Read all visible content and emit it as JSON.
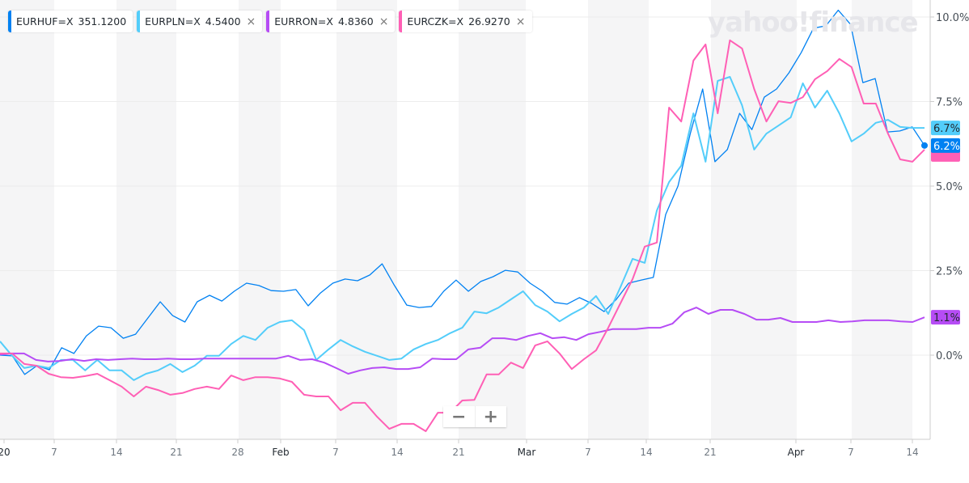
{
  "chart_data": {
    "type": "line",
    "title": "",
    "ylabel": "",
    "xlabel": "",
    "ylim": [
      -2.5,
      10.5
    ],
    "yticks": [
      "10.0%",
      "7.5%",
      "5.0%",
      "2.5%",
      "0.0%"
    ],
    "ytick_values": [
      10,
      7.5,
      5,
      2.5,
      0
    ],
    "xticks": [
      "20",
      "7",
      "14",
      "21",
      "28",
      "Feb",
      "7",
      "14",
      "21",
      "Mar",
      "7",
      "14",
      "21",
      "Apr",
      "7",
      "14"
    ],
    "legend_position": "top-left",
    "series": [
      {
        "name": "EURHUF=X",
        "price": "351.1200",
        "color": "#0081f2",
        "removable": false,
        "last_label": "6.2%",
        "values": [
          0.0,
          -0.02,
          -0.57,
          -0.31,
          -0.43,
          0.22,
          0.05,
          0.57,
          0.86,
          0.81,
          0.5,
          0.62,
          1.1,
          1.58,
          1.17,
          0.98,
          1.58,
          1.77,
          1.6,
          1.89,
          2.13,
          2.06,
          1.91,
          1.89,
          1.94,
          1.46,
          1.84,
          2.13,
          2.25,
          2.2,
          2.37,
          2.7,
          2.06,
          1.48,
          1.41,
          1.44,
          1.89,
          2.22,
          1.89,
          2.18,
          2.32,
          2.51,
          2.46,
          2.13,
          1.89,
          1.56,
          1.51,
          1.7,
          1.53,
          1.29,
          1.65,
          2.13,
          2.22,
          2.3,
          4.16,
          5.0,
          6.55,
          7.87,
          5.72,
          6.08,
          7.15,
          6.67,
          7.63,
          7.87,
          8.35,
          8.95,
          9.67,
          9.74,
          10.2,
          9.78,
          8.06,
          8.18,
          6.6,
          6.63,
          6.75,
          6.2
        ]
      },
      {
        "name": "EURPLN=X",
        "price": "4.5400",
        "color": "#53cdfa",
        "removable": true,
        "last_label": "6.7%",
        "values": [
          0.41,
          -0.02,
          -0.38,
          -0.31,
          -0.38,
          -0.14,
          -0.14,
          -0.45,
          -0.14,
          -0.45,
          -0.45,
          -0.74,
          -0.55,
          -0.45,
          -0.26,
          -0.5,
          -0.31,
          -0.02,
          -0.02,
          0.33,
          0.57,
          0.45,
          0.81,
          0.98,
          1.03,
          0.74,
          -0.14,
          0.17,
          0.45,
          0.26,
          0.1,
          -0.02,
          -0.14,
          -0.1,
          0.17,
          0.33,
          0.45,
          0.65,
          0.81,
          1.29,
          1.24,
          1.41,
          1.65,
          1.89,
          1.48,
          1.29,
          1.0,
          1.22,
          1.41,
          1.75,
          1.22,
          2.01,
          2.85,
          2.73,
          4.28,
          5.12,
          5.6,
          7.15,
          5.72,
          8.11,
          8.23,
          7.39,
          6.08,
          6.55,
          6.79,
          7.03,
          8.04,
          7.32,
          7.82,
          7.15,
          6.32,
          6.55,
          6.87,
          6.96,
          6.75,
          6.72,
          6.72
        ]
      },
      {
        "name": "EURRON=X",
        "price": "4.8360",
        "color": "#b64cf5",
        "removable": true,
        "last_label": "1.1%",
        "values": [
          0.02,
          0.05,
          0.05,
          -0.14,
          -0.19,
          -0.17,
          -0.12,
          -0.17,
          -0.12,
          -0.14,
          -0.12,
          -0.1,
          -0.12,
          -0.12,
          -0.1,
          -0.12,
          -0.12,
          -0.1,
          -0.1,
          -0.1,
          -0.1,
          -0.1,
          -0.1,
          -0.1,
          -0.02,
          -0.14,
          -0.12,
          -0.22,
          -0.38,
          -0.55,
          -0.45,
          -0.38,
          -0.36,
          -0.41,
          -0.41,
          -0.36,
          -0.1,
          -0.12,
          -0.12,
          0.17,
          0.22,
          0.5,
          0.5,
          0.45,
          0.57,
          0.65,
          0.5,
          0.53,
          0.45,
          0.62,
          0.69,
          0.77,
          0.77,
          0.77,
          0.81,
          0.81,
          0.93,
          1.27,
          1.41,
          1.22,
          1.34,
          1.34,
          1.22,
          1.05,
          1.05,
          1.1,
          0.98,
          0.98,
          0.98,
          1.03,
          0.98,
          1.0,
          1.03,
          1.03,
          1.03,
          1.0,
          0.98,
          1.12
        ]
      },
      {
        "name": "EURCZK=X",
        "price": "26.9270",
        "color": "#ff5fb5",
        "removable": true,
        "last_label": "",
        "values": [
          0.05,
          0.05,
          -0.26,
          -0.31,
          -0.55,
          -0.65,
          -0.67,
          -0.62,
          -0.55,
          -0.74,
          -0.93,
          -1.22,
          -0.93,
          -1.03,
          -1.17,
          -1.12,
          -1.0,
          -0.93,
          -1.0,
          -0.6,
          -0.74,
          -0.65,
          -0.65,
          -0.69,
          -0.79,
          -1.17,
          -1.22,
          -1.22,
          -1.63,
          -1.41,
          -1.41,
          -1.82,
          -2.18,
          -2.03,
          -2.03,
          -2.25,
          -1.7,
          -1.7,
          -1.34,
          -1.32,
          -0.57,
          -0.57,
          -0.22,
          -0.38,
          0.29,
          0.41,
          0.05,
          -0.41,
          -0.12,
          0.14,
          0.81,
          1.53,
          2.25,
          3.21,
          3.33,
          7.32,
          6.91,
          8.71,
          9.19,
          7.15,
          9.31,
          9.07,
          7.87,
          6.91,
          7.51,
          7.46,
          7.63,
          8.16,
          8.4,
          8.76,
          8.52,
          7.44,
          7.44,
          6.55,
          5.79,
          5.72,
          6.08
        ]
      }
    ]
  },
  "watermark": "yahoo!finance",
  "zoom_controls": {
    "minus": "−",
    "plus": "+"
  },
  "close_glyph": "×"
}
